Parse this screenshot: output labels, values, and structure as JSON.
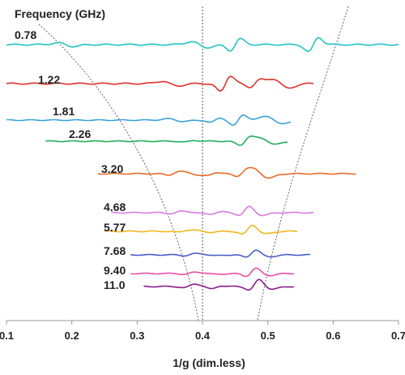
{
  "chart_data": {
    "type": "line",
    "title": "Frequency (GHz)",
    "xlabel": "1/g (dim.less)",
    "ylabel": "",
    "xlim": [
      0.1,
      0.7
    ],
    "x_ticks": [
      "0.1",
      "0.2",
      "0.3",
      "0.4",
      "0.5",
      "0.6",
      "0.7"
    ],
    "vertical_reference_line_x": 0.4,
    "grid": false,
    "series": [
      {
        "name": "0.78",
        "color": "#22c3c8",
        "x_range": [
          0.1,
          0.7
        ],
        "features": [
          {
            "x": 0.45,
            "amp": 1.0
          },
          {
            "x": 0.395,
            "amp": 0.5
          },
          {
            "x": 0.57,
            "amp": 1.2
          },
          {
            "x": 0.19,
            "amp": 0.3
          }
        ]
      },
      {
        "name": "1.22",
        "color": "#e0302b",
        "x_range": [
          0.1,
          0.57
        ],
        "features": [
          {
            "x": 0.435,
            "amp": 1.3
          },
          {
            "x": 0.35,
            "amp": 0.4
          },
          {
            "x": 0.48,
            "amp": 0.6
          },
          {
            "x": 0.52,
            "amp": 0.8
          }
        ]
      },
      {
        "name": "1.81",
        "color": "#3aa3d8",
        "x_range": [
          0.1,
          0.535
        ],
        "features": [
          {
            "x": 0.455,
            "amp": 1.2
          },
          {
            "x": 0.51,
            "amp": 0.9
          },
          {
            "x": 0.42,
            "amp": 0.5
          },
          {
            "x": 0.36,
            "amp": 0.3
          }
        ]
      },
      {
        "name": "2.26",
        "color": "#1fae5a",
        "x_range": [
          0.16,
          0.53
        ],
        "features": [
          {
            "x": 0.465,
            "amp": 1.0
          },
          {
            "x": 0.5,
            "amp": 0.8
          },
          {
            "x": 0.38,
            "amp": 0.2
          }
        ]
      },
      {
        "name": "3.20",
        "color": "#e8692a",
        "x_range": [
          0.24,
          0.635
        ],
        "features": [
          {
            "x": 0.46,
            "amp": 0.6
          },
          {
            "x": 0.49,
            "amp": 1.0
          },
          {
            "x": 0.355,
            "amp": 0.3
          },
          {
            "x": 0.385,
            "amp": 0.3
          },
          {
            "x": 0.415,
            "amp": 0.3
          }
        ]
      },
      {
        "name": "4.68",
        "color": "#d77be0",
        "x_range": [
          0.26,
          0.57
        ],
        "features": [
          {
            "x": 0.465,
            "amp": 0.8
          },
          {
            "x": 0.48,
            "amp": 0.6
          },
          {
            "x": 0.36,
            "amp": 0.2
          },
          {
            "x": 0.39,
            "amp": 0.2
          },
          {
            "x": 0.42,
            "amp": 0.2
          }
        ]
      },
      {
        "name": "5.77",
        "color": "#f2b61e",
        "x_range": [
          0.25,
          0.545
        ],
        "features": [
          {
            "x": 0.47,
            "amp": 0.9
          },
          {
            "x": 0.485,
            "amp": 0.6
          },
          {
            "x": 0.37,
            "amp": 0.2
          },
          {
            "x": 0.4,
            "amp": 0.2
          }
        ]
      },
      {
        "name": "7.68",
        "color": "#4a5dc9",
        "x_range": [
          0.29,
          0.565
        ],
        "features": [
          {
            "x": 0.475,
            "amp": 0.8
          },
          {
            "x": 0.49,
            "amp": 0.5
          },
          {
            "x": 0.38,
            "amp": 0.2
          },
          {
            "x": 0.41,
            "amp": 0.2
          }
        ]
      },
      {
        "name": "9.40",
        "color": "#e84fa5",
        "x_range": [
          0.29,
          0.54
        ],
        "features": [
          {
            "x": 0.475,
            "amp": 0.9
          },
          {
            "x": 0.49,
            "amp": 0.5
          },
          {
            "x": 0.38,
            "amp": 0.2
          },
          {
            "x": 0.41,
            "amp": 0.2
          }
        ]
      },
      {
        "name": "11.0",
        "color": "#8a1a8c",
        "x_range": [
          0.31,
          0.54
        ],
        "features": [
          {
            "x": 0.48,
            "amp": 1.0
          },
          {
            "x": 0.495,
            "amp": 0.6
          },
          {
            "x": 0.38,
            "amp": 0.3
          },
          {
            "x": 0.405,
            "amp": 0.3
          },
          {
            "x": 0.42,
            "amp": 0.3
          }
        ]
      }
    ]
  }
}
